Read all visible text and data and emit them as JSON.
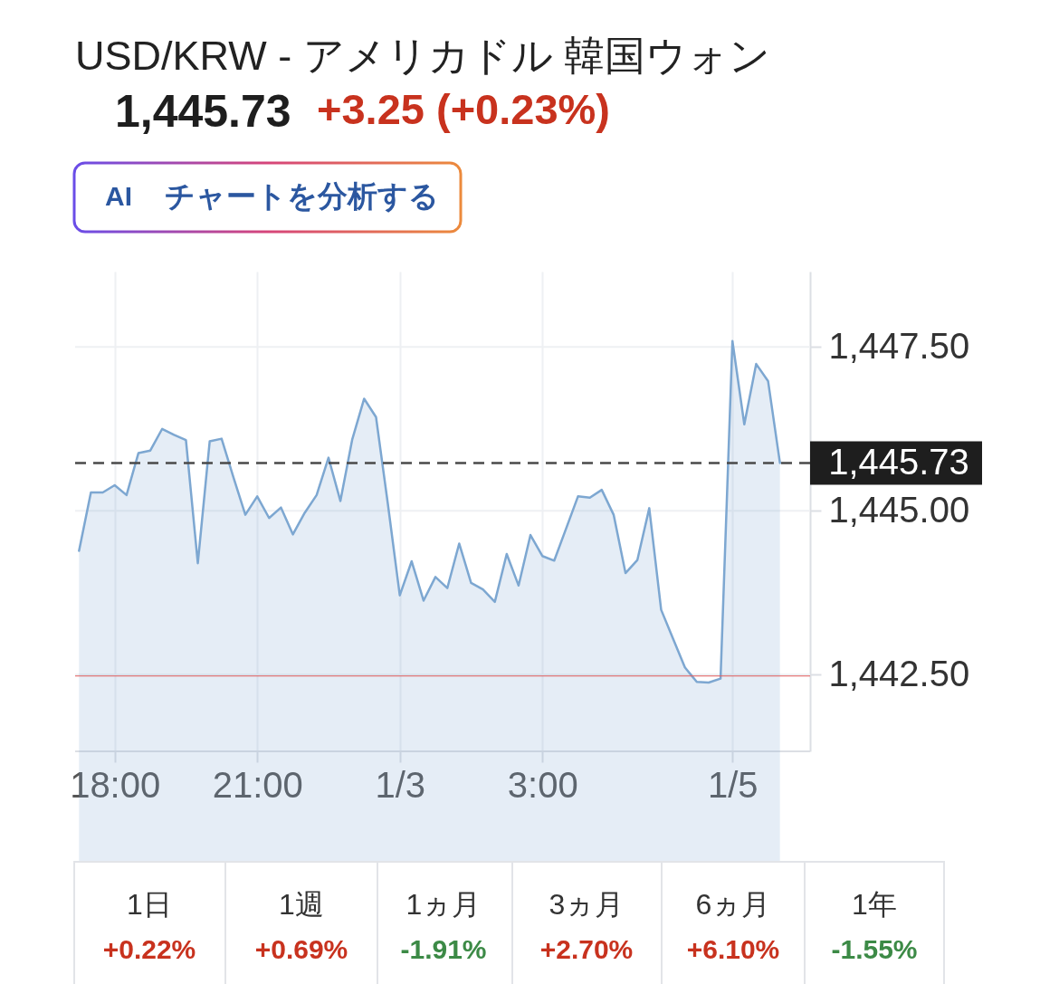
{
  "chart_data": {
    "type": "area",
    "title": "USD/KRW - アメリカドル 韓国ウォン",
    "subtitle": "1,445.73",
    "annotations": [
      "+3.25 (+0.23%)",
      "AI",
      "チャートを分析する",
      "1日",
      "+0.22%",
      "1週",
      "+0.69%",
      "1ヵ月",
      "-1.91%",
      "3ヵ月",
      "+2.70%",
      "6ヵ月",
      "+6.10%",
      "1年",
      "-1.55%"
    ],
    "categories": [
      null,
      null,
      null,
      "18:00",
      null,
      null,
      null,
      null,
      null,
      null,
      null,
      null,
      null,
      null,
      null,
      "21:00",
      null,
      null,
      null,
      null,
      null,
      null,
      null,
      null,
      null,
      null,
      null,
      "1/3",
      null,
      null,
      null,
      null,
      null,
      null,
      null,
      null,
      null,
      null,
      null,
      "3:00",
      null,
      null,
      null,
      null,
      null,
      null,
      null,
      null,
      null,
      null,
      null,
      null,
      null,
      null,
      null,
      "1/5",
      null,
      null,
      null,
      null
    ],
    "series": [
      {
        "color": "#7da7d1",
        "values": [
          1444.39,
          1445.28,
          1445.28,
          1445.39,
          1445.24,
          1445.88,
          1445.92,
          1446.25,
          1446.16,
          1446.08,
          1444.2,
          1446.06,
          1446.1,
          1445.51,
          1444.94,
          1445.22,
          1444.89,
          1445.05,
          1444.64,
          1444.97,
          1445.24,
          1445.81,
          1445.15,
          1446.09,
          1446.71,
          1446.43,
          1445.1,
          1443.71,
          1444.23,
          1443.63,
          1443.99,
          1443.82,
          1444.5,
          1443.9,
          1443.8,
          1443.61,
          1444.34,
          1443.86,
          1444.63,
          1444.31,
          1444.24,
          1444.73,
          1445.22,
          1445.2,
          1445.32,
          1444.94,
          1444.05,
          1444.25,
          1445.04,
          1443.49,
          1443.05,
          1442.61,
          1442.39,
          1442.38,
          1442.44,
          1447.59,
          1446.32,
          1447.24,
          1446.98,
          1445.73
        ]
      }
    ],
    "ylim": [
      1441.33,
      1448.65
    ],
    "yticks": [
      {
        "value": 1442.5,
        "label": "1,442.50"
      },
      {
        "value": 1445,
        "label": "1,445.00"
      },
      {
        "value": 1447.5,
        "label": "1,447.50"
      }
    ],
    "ref_lines": [
      {
        "axis": "y",
        "value": 1445.73,
        "label": "1,445.73",
        "color": "#4a4a4a",
        "line_style": "dashed"
      },
      {
        "axis": "y",
        "value": 1442.48,
        "color": "#e05a5a",
        "line_style": "solid"
      }
    ],
    "grid": true
  }
}
